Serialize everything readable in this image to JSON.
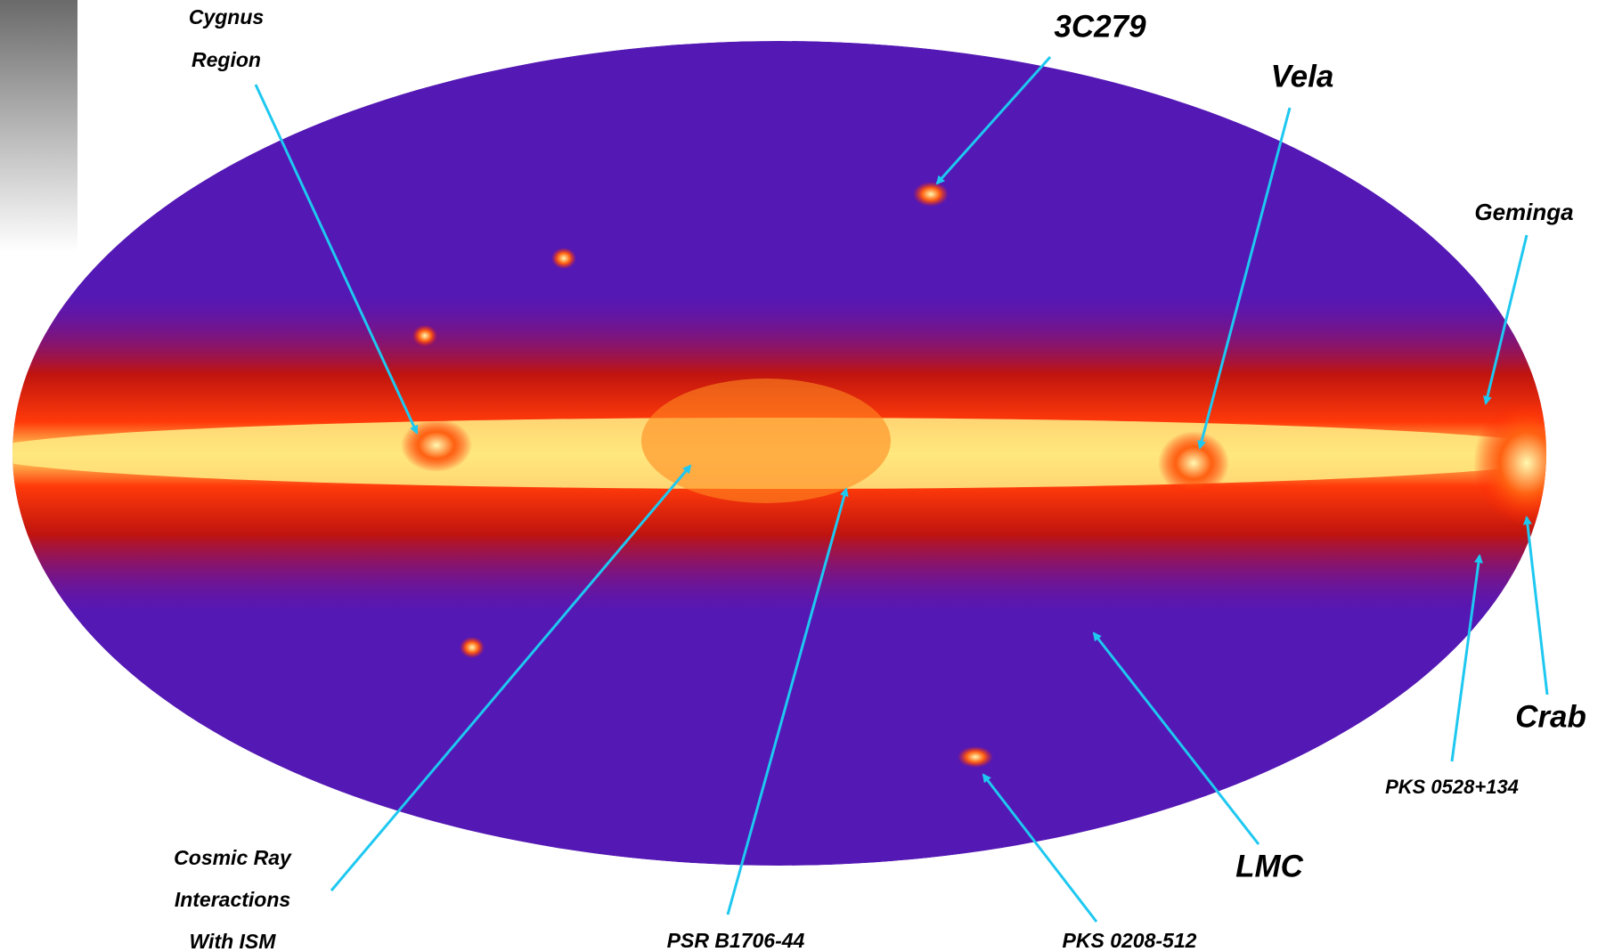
{
  "labels": [
    {
      "lines": [
        "Cygnus",
        "Region"
      ]
    },
    {
      "lines": [
        "3C279"
      ]
    },
    {
      "lines": [
        "Vela"
      ]
    },
    {
      "lines": [
        "Geminga"
      ]
    },
    {
      "lines": [
        "Crab"
      ]
    },
    {
      "lines": [
        "PKS 0528+134"
      ]
    },
    {
      "lines": [
        "LMC"
      ]
    },
    {
      "lines": [
        "PKS 0208-512"
      ]
    },
    {
      "lines": [
        "PSR B1706-44"
      ]
    },
    {
      "lines": [
        "Cosmic Ray",
        "Interactions",
        "With ISM"
      ]
    }
  ]
}
